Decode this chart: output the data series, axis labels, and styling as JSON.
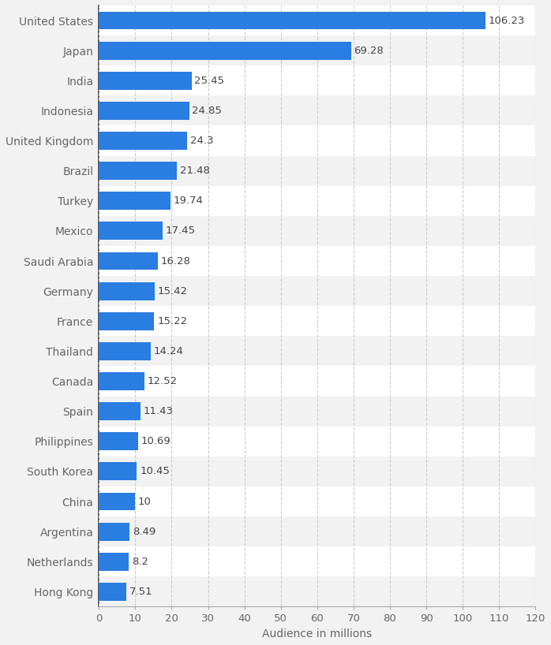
{
  "countries": [
    "Hong Kong",
    "Netherlands",
    "Argentina",
    "China",
    "South Korea",
    "Philippines",
    "Spain",
    "Canada",
    "Thailand",
    "France",
    "Germany",
    "Saudi Arabia",
    "Mexico",
    "Turkey",
    "Brazil",
    "United Kingdom",
    "Indonesia",
    "India",
    "Japan",
    "United States"
  ],
  "values": [
    7.51,
    8.2,
    8.49,
    10,
    10.45,
    10.69,
    11.43,
    12.52,
    14.24,
    15.22,
    15.42,
    16.28,
    17.45,
    19.74,
    21.48,
    24.3,
    24.85,
    25.45,
    69.28,
    106.23
  ],
  "bar_color": "#2a7de1",
  "background_color_light": "#f2f2f2",
  "background_color_white": "#ffffff",
  "xlabel": "Audience in millions",
  "xlim": [
    0,
    120
  ],
  "xticks": [
    0,
    10,
    20,
    30,
    40,
    50,
    60,
    70,
    80,
    90,
    100,
    110,
    120
  ],
  "label_fontsize": 10,
  "tick_fontsize": 9.5,
  "value_label_fontsize": 9.5,
  "bar_height": 0.6,
  "grid_color": "#cccccc",
  "text_color": "#666666",
  "row_colors": [
    "#f2f2f2",
    "#ffffff"
  ]
}
